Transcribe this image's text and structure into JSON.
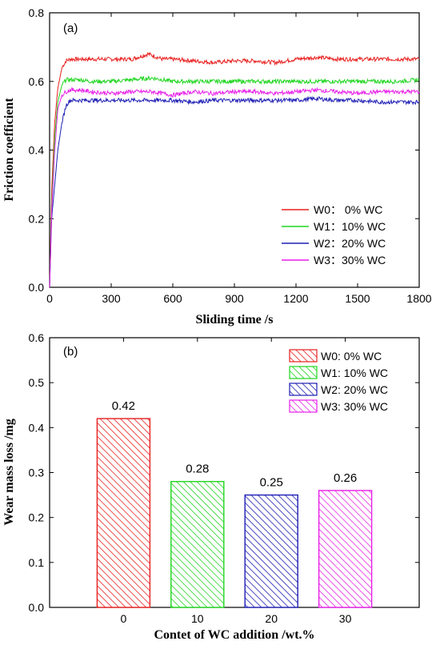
{
  "colors": {
    "W0": "#e8201f",
    "W1": "#1fd61f",
    "W2": "#1f1fb5",
    "W3": "#e81fe8"
  },
  "chart_data": [
    {
      "type": "line",
      "panel_label": "(a)",
      "xlabel": "Sliding time /s",
      "ylabel": "Friction coefficient",
      "xlim": [
        0,
        1800
      ],
      "ylim": [
        0,
        0.8
      ],
      "xticks": [
        0,
        300,
        600,
        900,
        1200,
        1500,
        1800
      ],
      "yticks": [
        0.0,
        0.2,
        0.4,
        0.6,
        0.8
      ],
      "grid": false,
      "legend_position": "lower-right",
      "series": [
        {
          "name": "W0：  0% WC",
          "color": "#e8201f",
          "x": [
            0,
            10,
            25,
            40,
            60,
            80,
            100,
            150,
            200,
            300,
            400,
            480,
            550,
            600,
            700,
            800,
            900,
            1000,
            1100,
            1200,
            1300,
            1400,
            1500,
            1600,
            1700,
            1800
          ],
          "y": [
            0.0,
            0.28,
            0.48,
            0.58,
            0.64,
            0.66,
            0.665,
            0.665,
            0.665,
            0.665,
            0.665,
            0.68,
            0.665,
            0.665,
            0.66,
            0.655,
            0.66,
            0.66,
            0.655,
            0.665,
            0.67,
            0.665,
            0.665,
            0.665,
            0.665,
            0.665
          ]
        },
        {
          "name": "W1：10% WC",
          "color": "#1fd61f",
          "x": [
            0,
            10,
            25,
            40,
            60,
            80,
            100,
            150,
            200,
            300,
            400,
            500,
            600,
            700,
            800,
            900,
            1000,
            1100,
            1200,
            1300,
            1400,
            1500,
            1600,
            1700,
            1800
          ],
          "y": [
            0.0,
            0.24,
            0.44,
            0.54,
            0.59,
            0.605,
            0.605,
            0.605,
            0.6,
            0.6,
            0.605,
            0.61,
            0.6,
            0.6,
            0.6,
            0.6,
            0.6,
            0.6,
            0.6,
            0.6,
            0.6,
            0.6,
            0.6,
            0.6,
            0.605
          ]
        },
        {
          "name": "W2：20% WC",
          "color": "#1f1fb5",
          "x": [
            0,
            10,
            25,
            40,
            60,
            80,
            100,
            150,
            200,
            300,
            400,
            500,
            600,
            700,
            800,
            900,
            1000,
            1100,
            1200,
            1300,
            1400,
            1500,
            1600,
            1700,
            1800
          ],
          "y": [
            0.0,
            0.2,
            0.3,
            0.4,
            0.48,
            0.53,
            0.545,
            0.545,
            0.545,
            0.545,
            0.545,
            0.545,
            0.545,
            0.54,
            0.545,
            0.545,
            0.545,
            0.545,
            0.545,
            0.55,
            0.545,
            0.545,
            0.54,
            0.54,
            0.54
          ]
        },
        {
          "name": "W3：30% WC",
          "color": "#e81fe8",
          "x": [
            0,
            10,
            25,
            40,
            60,
            80,
            100,
            150,
            200,
            300,
            400,
            500,
            600,
            700,
            800,
            900,
            1000,
            1100,
            1200,
            1300,
            1400,
            1500,
            1600,
            1700,
            1800
          ],
          "y": [
            0.0,
            0.22,
            0.4,
            0.52,
            0.56,
            0.57,
            0.575,
            0.575,
            0.57,
            0.565,
            0.57,
            0.57,
            0.56,
            0.57,
            0.565,
            0.57,
            0.57,
            0.565,
            0.57,
            0.575,
            0.57,
            0.565,
            0.57,
            0.57,
            0.57
          ]
        }
      ]
    },
    {
      "type": "bar",
      "panel_label": "(b)",
      "xlabel": "Contet of WC addition /wt.%",
      "ylabel": "Wear mass loss /mg",
      "categories": [
        "0",
        "10",
        "20",
        "30"
      ],
      "values": [
        0.42,
        0.28,
        0.25,
        0.26
      ],
      "data_labels": [
        "0.42",
        "0.28",
        "0.25",
        "0.26"
      ],
      "series_names": [
        "W0:   0% WC",
        "W1:  10% WC",
        "W2:  20% WC",
        "W3:  30% WC"
      ],
      "colors": [
        "#e8201f",
        "#1fd61f",
        "#1f1fb5",
        "#e81fe8"
      ],
      "pattern": "diagonal-hatch",
      "ylim": [
        0,
        0.6
      ],
      "yticks": [
        0.0,
        0.1,
        0.2,
        0.3,
        0.4,
        0.5,
        0.6
      ],
      "grid": false,
      "legend_position": "top-right"
    }
  ]
}
